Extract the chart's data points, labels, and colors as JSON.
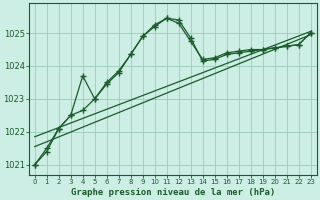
{
  "title": "Graphe pression niveau de la mer (hPa)",
  "bg_color": "#cceee4",
  "grid_color": "#99ccbb",
  "line_color": "#1a5c2a",
  "xlim": [
    -0.5,
    23.5
  ],
  "ylim": [
    1020.7,
    1025.9
  ],
  "xticks": [
    0,
    1,
    2,
    3,
    4,
    5,
    6,
    7,
    8,
    9,
    10,
    11,
    12,
    13,
    14,
    15,
    16,
    17,
    18,
    19,
    20,
    21,
    22,
    23
  ],
  "yticks": [
    1021,
    1022,
    1023,
    1024,
    1025
  ],
  "line1_x": [
    0,
    1,
    2,
    3,
    4,
    5,
    6,
    7,
    8,
    9,
    10,
    11,
    12,
    13,
    14,
    15,
    16,
    17,
    18,
    19,
    20,
    21,
    22,
    23
  ],
  "line1_y": [
    1021.0,
    1021.5,
    1022.1,
    1022.5,
    1022.65,
    1023.0,
    1023.45,
    1023.8,
    1024.35,
    1024.9,
    1025.25,
    1025.45,
    1025.4,
    1024.85,
    1024.15,
    1024.2,
    1024.35,
    1024.4,
    1024.45,
    1024.5,
    1024.55,
    1024.6,
    1024.65,
    1025.0
  ],
  "line2_x": [
    0,
    1,
    2,
    3,
    4,
    5,
    6,
    7,
    8,
    9,
    10,
    11,
    12,
    13,
    14,
    15,
    16,
    17,
    18,
    19,
    20,
    21,
    22,
    23
  ],
  "line2_y": [
    1021.0,
    1021.4,
    1022.1,
    1022.5,
    1023.7,
    1023.0,
    1023.5,
    1023.85,
    1024.35,
    1024.9,
    1025.2,
    1025.45,
    1025.3,
    1024.75,
    1024.2,
    1024.25,
    1024.4,
    1024.45,
    1024.5,
    1024.5,
    1024.55,
    1024.6,
    1024.65,
    1025.0
  ],
  "line3_x": [
    0,
    23
  ],
  "line3_y": [
    1021.55,
    1024.95
  ],
  "line4_x": [
    0,
    23
  ],
  "line4_y": [
    1021.85,
    1025.05
  ]
}
